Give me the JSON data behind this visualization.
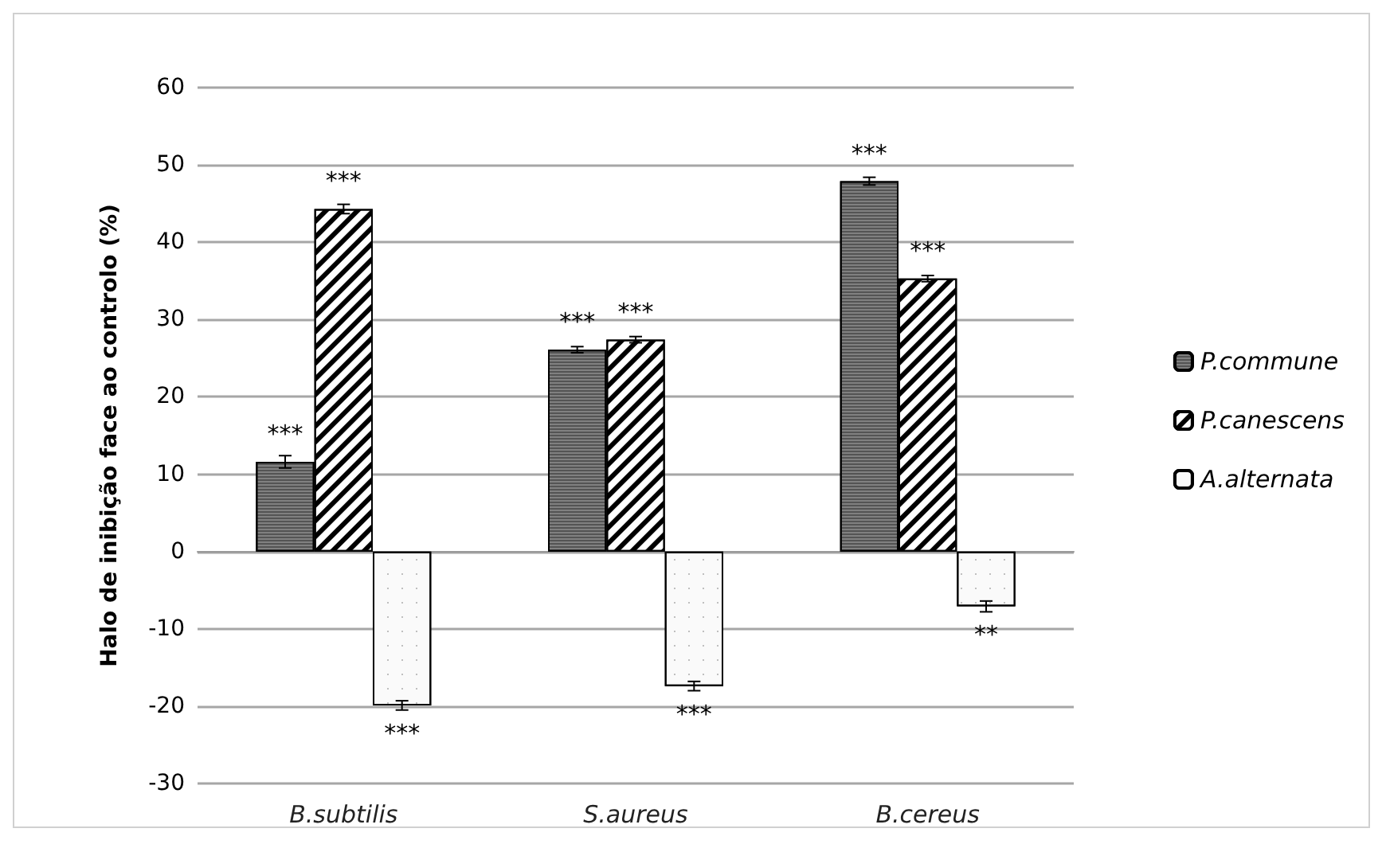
{
  "chart_data": {
    "type": "bar",
    "ylabel": "Halo de inibição face ao controlo (%)",
    "categories": [
      "B.subtilis",
      "S.aureus",
      "B.cereus"
    ],
    "series": [
      {
        "name": "P.commune",
        "color": "#808080",
        "values": [
          11.6,
          26.1,
          47.9
        ],
        "errors": [
          0.8,
          0.4,
          0.5
        ],
        "value_labels": [
          "***",
          "***",
          "***"
        ]
      },
      {
        "name": "P.canescens",
        "color": "#ffffff",
        "values": [
          44.3,
          27.4,
          35.3
        ],
        "errors": [
          0.6,
          0.4,
          0.4
        ],
        "value_labels": [
          "***",
          "***",
          "***"
        ]
      },
      {
        "name": "A.alternata",
        "color": "#fafafa",
        "values": [
          -19.9,
          -17.4,
          -7.1
        ],
        "errors": [
          0.6,
          0.6,
          0.7
        ],
        "value_labels": [
          "***",
          "***",
          "**"
        ]
      }
    ],
    "ylim": [
      -30,
      60
    ],
    "yticks": [
      -30,
      -20,
      -10,
      0,
      10,
      20,
      30,
      40,
      50,
      60
    ],
    "grid": "y",
    "legend": "right"
  }
}
